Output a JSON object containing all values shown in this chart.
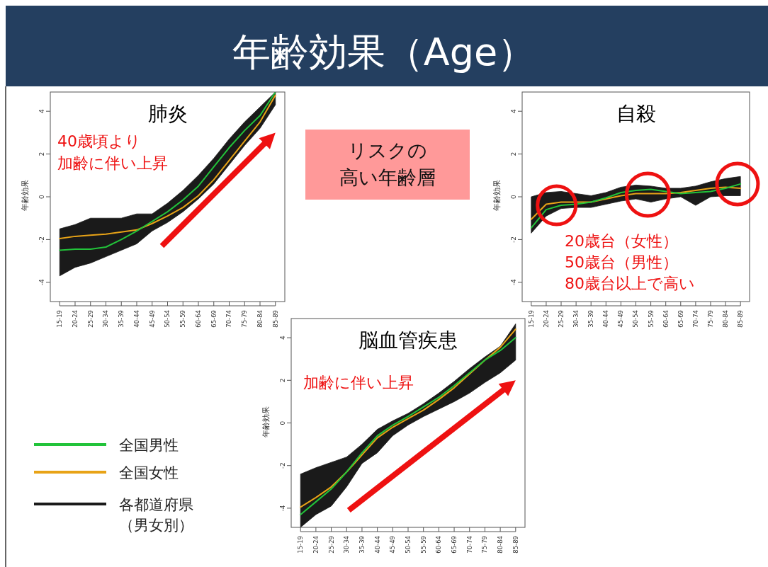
{
  "chart_data": [
    {
      "type": "line",
      "title": "肺炎",
      "ylabel": "年齢効果",
      "annotations": [
        "年齢効果（Age）",
        "40歳頃より",
        "加齢に伴い上昇"
      ],
      "categories": [
        "15-19",
        "20-24",
        "25-29",
        "30-34",
        "35-39",
        "40-44",
        "45-49",
        "50-54",
        "55-59",
        "60-64",
        "65-69",
        "70-74",
        "75-79",
        "80-84",
        "85-89"
      ],
      "ylim": [
        -4.9,
        4.9
      ],
      "yticks": [
        -4,
        -2,
        0,
        2,
        4
      ],
      "series": [
        {
          "color": "#1a1a1a",
          "values": [
            null,
            null,
            null,
            null,
            null,
            null,
            null,
            null,
            null,
            null,
            null,
            null,
            null,
            null,
            null
          ],
          "lower": [
            -3.7,
            -3.3,
            -3.1,
            -2.8,
            -2.5,
            -2.2,
            -1.6,
            -1.2,
            -0.7,
            -0.1,
            0.6,
            1.5,
            2.4,
            3.2,
            4.3
          ],
          "upper": [
            -1.5,
            -1.3,
            -1.0,
            -1.0,
            -1.0,
            -0.8,
            -0.8,
            -0.3,
            0.3,
            1.0,
            1.8,
            2.7,
            3.5,
            4.2,
            4.9
          ]
        },
        {
          "color": "#e8a317",
          "values": [
            -1.95,
            -1.85,
            -1.8,
            -1.75,
            -1.65,
            -1.55,
            -1.25,
            -0.9,
            -0.5,
            0.05,
            0.8,
            1.7,
            2.6,
            3.5,
            4.75
          ]
        },
        {
          "color": "#22c33a",
          "values": [
            -2.5,
            -2.45,
            -2.45,
            -2.35,
            -2.0,
            -1.6,
            -1.15,
            -0.7,
            -0.15,
            0.5,
            1.4,
            2.3,
            3.1,
            3.8,
            4.9
          ]
        }
      ]
    },
    {
      "type": "line",
      "title": "自殺",
      "ylabel": "年齢効果",
      "annotations": [
        "20歳台（女性）",
        "50歳台（男性）",
        "80歳台以上で高い",
        "リスクの",
        "高い年齢層"
      ],
      "categories": [
        "15-19",
        "20-24",
        "25-29",
        "30-34",
        "35-39",
        "40-44",
        "45-49",
        "50-54",
        "55-59",
        "60-64",
        "65-69",
        "70-74",
        "75-79",
        "80-84",
        "85-89"
      ],
      "ylim": [
        -4.9,
        4.9
      ],
      "yticks": [
        -4,
        -2,
        0,
        2,
        4
      ],
      "series": [
        {
          "color": "#1a1a1a",
          "values": [
            null,
            null,
            null,
            null,
            null,
            null,
            null,
            null,
            null,
            null,
            null,
            null,
            null,
            null,
            null
          ],
          "lower": [
            -1.7,
            -0.9,
            -0.55,
            -0.5,
            -0.5,
            -0.35,
            -0.2,
            -0.1,
            -0.25,
            -0.1,
            0,
            -0.4,
            0,
            0.05,
            0.05
          ],
          "upper": [
            0,
            0.2,
            0.25,
            0.15,
            0.05,
            0.2,
            0.45,
            0.55,
            0.5,
            0.4,
            0.4,
            0.5,
            0.7,
            0.85,
            0.95
          ]
        },
        {
          "color": "#e8a317",
          "values": [
            -1.05,
            -0.35,
            -0.25,
            -0.25,
            -0.25,
            -0.1,
            0.05,
            0.15,
            0.15,
            0.15,
            0.2,
            0.3,
            0.4,
            0.45,
            0.4
          ]
        },
        {
          "color": "#22c33a",
          "values": [
            -1.45,
            -0.6,
            -0.4,
            -0.35,
            -0.25,
            -0.05,
            0.2,
            0.3,
            0.35,
            0.25,
            0.15,
            0.2,
            0.25,
            0.4,
            0.6
          ]
        }
      ]
    },
    {
      "type": "line",
      "title": "脳血管疾患",
      "ylabel": "年齢効果",
      "annotations": [
        "加齢に伴い上昇"
      ],
      "legend": "left",
      "categories": [
        "15-19",
        "20-24",
        "25-29",
        "30-34",
        "35-39",
        "40-44",
        "45-49",
        "50-54",
        "55-59",
        "60-64",
        "65-69",
        "70-74",
        "75-79",
        "80-84",
        "85-89"
      ],
      "ylim": [
        -4.9,
        4.9
      ],
      "yticks": [
        -4,
        -2,
        0,
        2,
        4
      ],
      "series": [
        {
          "name": "各都道府県（男女別）",
          "color": "#1a1a1a",
          "values": [
            null,
            null,
            null,
            null,
            null,
            null,
            null,
            null,
            null,
            null,
            null,
            null,
            null,
            null,
            null
          ],
          "lower": [
            -4.9,
            -4.3,
            -3.9,
            -3.0,
            -1.9,
            -1.4,
            -0.6,
            -0.1,
            0.3,
            0.65,
            1.0,
            1.4,
            1.9,
            2.35,
            2.95
          ],
          "upper": [
            -2.4,
            -2.1,
            -1.85,
            -1.6,
            -1.0,
            -0.3,
            0.1,
            0.45,
            0.9,
            1.4,
            1.95,
            2.55,
            3.1,
            3.6,
            4.65
          ]
        },
        {
          "name": "全国女性",
          "color": "#e8a317",
          "values": [
            -3.95,
            -3.5,
            -3.0,
            -2.3,
            -1.5,
            -0.7,
            -0.2,
            0.2,
            0.6,
            1.1,
            1.65,
            2.3,
            2.95,
            3.55,
            4.4
          ]
        },
        {
          "name": "全国男性",
          "color": "#22c33a",
          "values": [
            -4.3,
            -3.7,
            -3.1,
            -2.3,
            -1.4,
            -0.6,
            -0.1,
            0.3,
            0.75,
            1.2,
            1.75,
            2.35,
            2.95,
            3.4,
            4.0
          ]
        }
      ]
    }
  ]
}
